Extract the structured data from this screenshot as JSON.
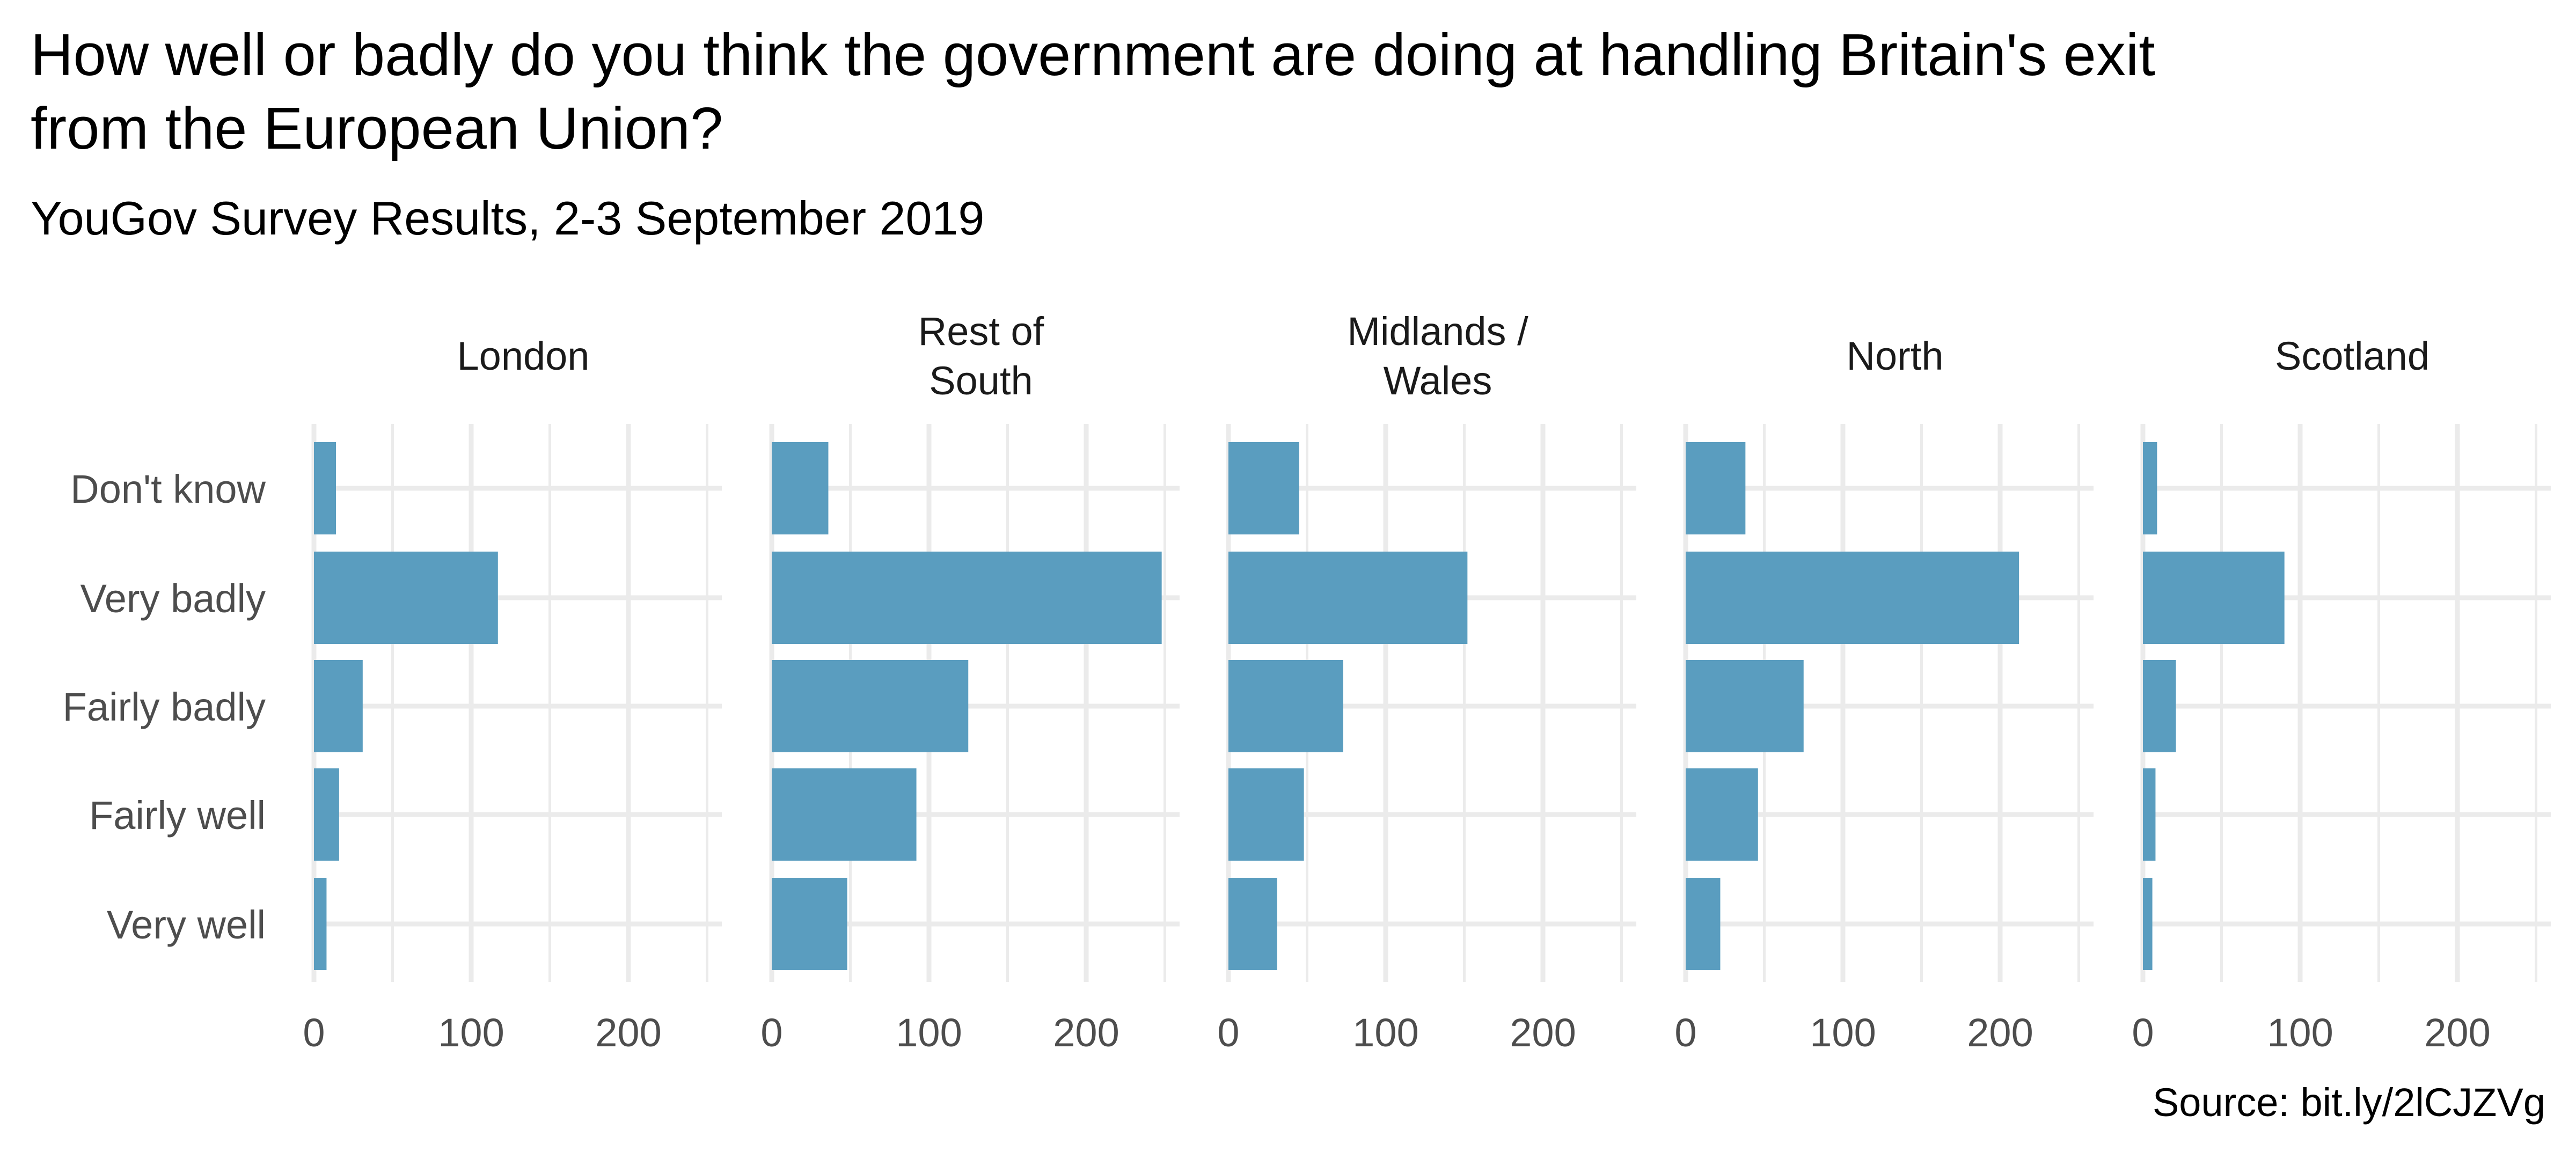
{
  "chart_data": {
    "type": "bar",
    "orientation": "horizontal",
    "faceted": true,
    "title": "How well or badly do you think the government are doing at handling Britain's exit from the European Union?",
    "title_lines": [
      "How well or badly do you think the government are doing at handling Britain's exit",
      "from the European Union?"
    ],
    "subtitle": "YouGov Survey Results, 2-3 September 2019",
    "caption": "Source: bit.ly/2lCJZVg",
    "xlabel": "",
    "ylabel": "",
    "categories": [
      "Very well",
      "Fairly well",
      "Fairly badly",
      "Very badly",
      "Don't know"
    ],
    "xlim": [
      0,
      260
    ],
    "x_ticks": [
      0,
      100,
      200
    ],
    "x_minor_ticks": [
      50,
      150,
      250
    ],
    "grid": true,
    "bar_color": "#5A9DBF",
    "grid_color": "#EBEBEB",
    "text_color": "#000000",
    "axis_text_color": "#4D4D4D",
    "panels": [
      {
        "name": "London",
        "label_lines": [
          "London"
        ],
        "values": [
          8,
          16,
          31,
          117,
          14
        ]
      },
      {
        "name": "Rest of South",
        "label_lines": [
          "Rest of",
          "South"
        ],
        "values": [
          48,
          92,
          125,
          248,
          36
        ]
      },
      {
        "name": "Midlands / Wales",
        "label_lines": [
          "Midlands /",
          "Wales"
        ],
        "values": [
          31,
          48,
          73,
          152,
          45
        ]
      },
      {
        "name": "North",
        "label_lines": [
          "North"
        ],
        "values": [
          22,
          46,
          75,
          212,
          38
        ]
      },
      {
        "name": "Scotland",
        "label_lines": [
          "Scotland"
        ],
        "values": [
          6,
          8,
          21,
          90,
          9
        ]
      }
    ]
  }
}
